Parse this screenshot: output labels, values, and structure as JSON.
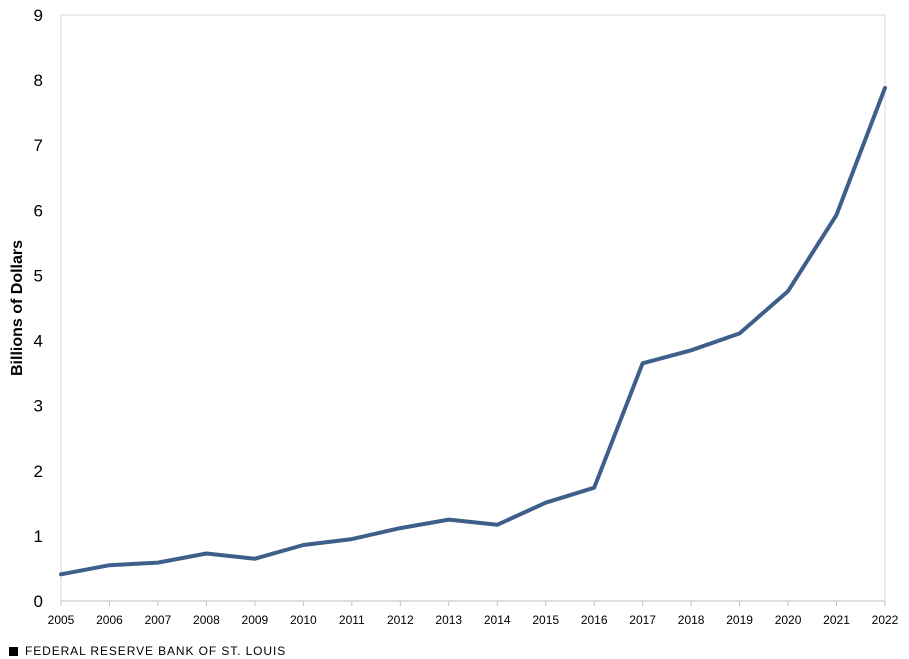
{
  "chart_data": {
    "type": "line",
    "ylabel": "Billions of Dollars",
    "xlabel": "",
    "ylim": [
      0,
      9
    ],
    "yticks": [
      0,
      1,
      2,
      3,
      4,
      5,
      6,
      7,
      8,
      9
    ],
    "x": [
      "2005",
      "2006",
      "2007",
      "2008",
      "2009",
      "2010",
      "2011",
      "2012",
      "2013",
      "2014",
      "2015",
      "2016",
      "2017",
      "2018",
      "2019",
      "2020",
      "2021",
      "2022"
    ],
    "series": [
      {
        "values": [
          0.41,
          0.55,
          0.59,
          0.73,
          0.65,
          0.86,
          0.95,
          1.12,
          1.25,
          1.17,
          1.51,
          1.74,
          3.65,
          3.85,
          4.11,
          4.76,
          5.93,
          7.88
        ],
        "color": "#3e5f8a"
      }
    ],
    "grid": false,
    "legend": "none"
  },
  "footer": {
    "source": "FEDERAL RESERVE BANK OF ST. LOUIS"
  }
}
